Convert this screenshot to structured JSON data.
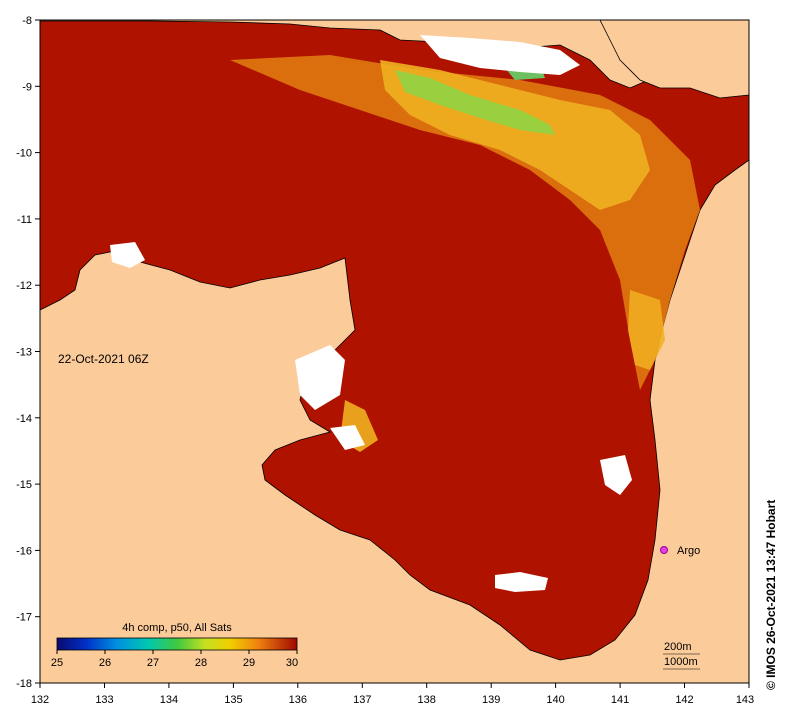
{
  "map": {
    "timestamp": "22-Oct-2021 06Z",
    "lon_ticks": [
      "132",
      "133",
      "134",
      "135",
      "136",
      "137",
      "138",
      "139",
      "140",
      "141",
      "142",
      "143"
    ],
    "lat_ticks": [
      "-8",
      "-9",
      "-10",
      "-11",
      "-12",
      "-13",
      "-14",
      "-15",
      "-16",
      "-17",
      "-18"
    ],
    "colorbar": {
      "title": "4h comp, p50, All Sats",
      "ticks": [
        "25",
        "26",
        "27",
        "28",
        "29",
        "30"
      ]
    },
    "marker": {
      "label": "Argo",
      "lon": 141.7,
      "lat": -16.0,
      "color": "#e040e0"
    },
    "contour_legend": [
      "200m",
      "1000m"
    ],
    "credit": "© IMOS 26-Oct-2021 13:47 Hobart",
    "colors": {
      "land": "#fbcb9a",
      "sst_hot": "#b01200",
      "sst_warm": "#e07a10",
      "sst_mid": "#f0b020",
      "sst_cool": "#9ad040",
      "cloud": "#ffffff"
    }
  }
}
